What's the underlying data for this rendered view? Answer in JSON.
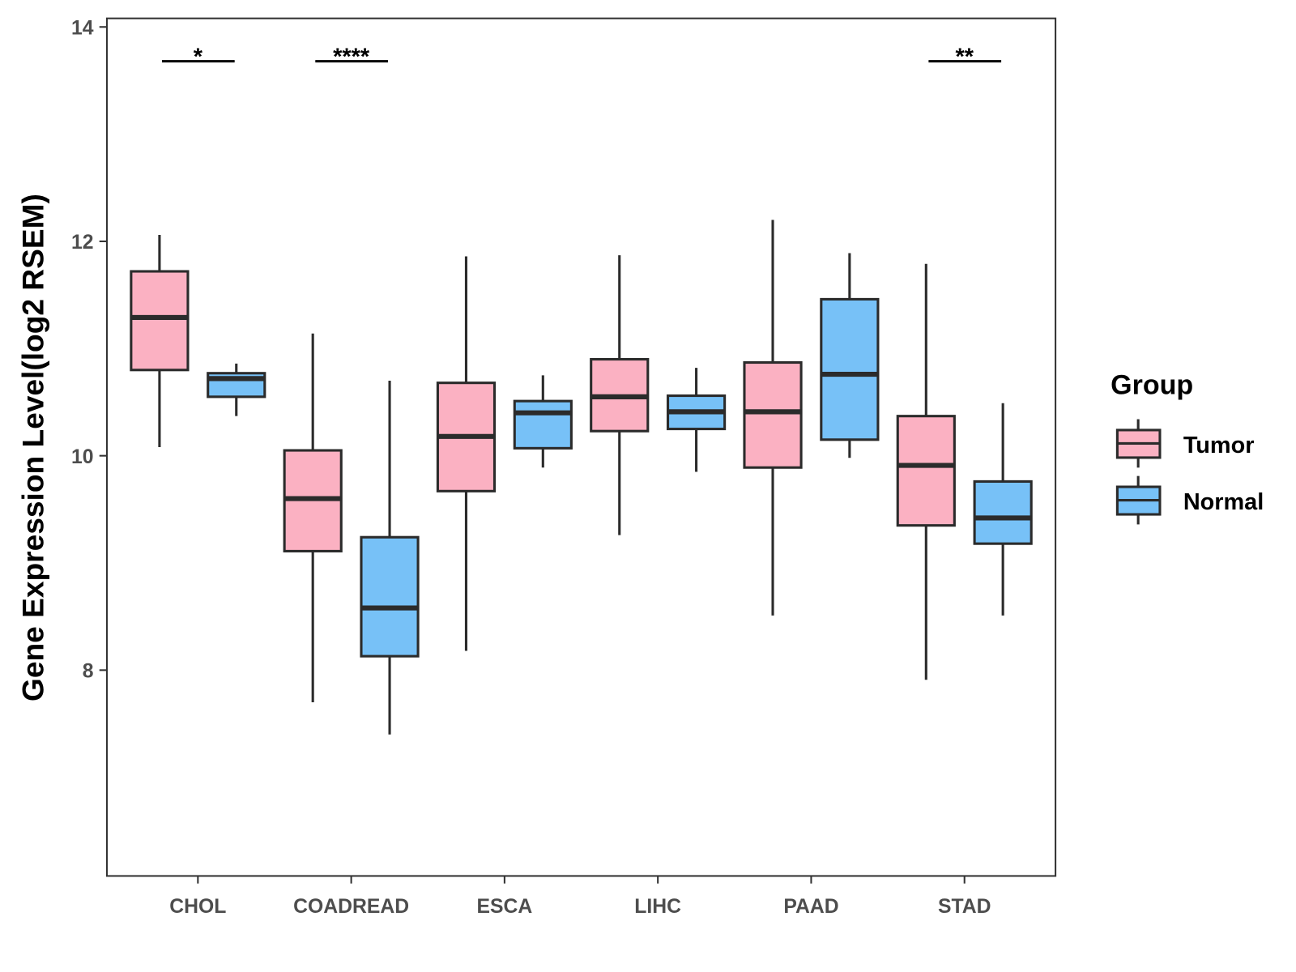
{
  "chart_data": {
    "type": "box",
    "title": "",
    "xlabel": "",
    "ylabel": "Gene Expression Level(log2 RSEM)",
    "ylim": [
      6.08,
      14.08
    ],
    "yticks": [
      "8",
      "10",
      "12",
      "14"
    ],
    "grid": false,
    "categories": [
      "CHOL",
      "COADREAD",
      "ESCA",
      "LIHC",
      "PAAD",
      "STAD"
    ],
    "legend": {
      "title": "Group",
      "placement": "right",
      "entries": [
        "Tumor",
        "Normal"
      ]
    },
    "colors": {
      "Tumor": "#fbb1c2",
      "Normal": "#77c1f7",
      "outline": "#2b2b2b"
    },
    "series": [
      {
        "name": "Tumor",
        "boxes": [
          {
            "min": 10.08,
            "q1": 10.8,
            "median": 11.29,
            "q3": 11.72,
            "max": 12.06
          },
          {
            "min": 7.7,
            "q1": 9.11,
            "median": 9.6,
            "q3": 10.05,
            "max": 11.14
          },
          {
            "min": 8.18,
            "q1": 9.67,
            "median": 10.18,
            "q3": 10.68,
            "max": 11.86
          },
          {
            "min": 9.26,
            "q1": 10.23,
            "median": 10.55,
            "q3": 10.9,
            "max": 11.87
          },
          {
            "min": 8.51,
            "q1": 9.89,
            "median": 10.41,
            "q3": 10.87,
            "max": 12.2
          },
          {
            "min": 7.91,
            "q1": 9.35,
            "median": 9.91,
            "q3": 10.37,
            "max": 11.79
          }
        ]
      },
      {
        "name": "Normal",
        "boxes": [
          {
            "min": 10.37,
            "q1": 10.55,
            "median": 10.72,
            "q3": 10.77,
            "max": 10.86
          },
          {
            "min": 7.4,
            "q1": 8.13,
            "median": 8.58,
            "q3": 9.24,
            "max": 10.7
          },
          {
            "min": 9.89,
            "q1": 10.07,
            "median": 10.4,
            "q3": 10.51,
            "max": 10.75
          },
          {
            "min": 9.85,
            "q1": 10.25,
            "median": 10.41,
            "q3": 10.56,
            "max": 10.82
          },
          {
            "min": 9.98,
            "q1": 10.15,
            "median": 10.76,
            "q3": 11.46,
            "max": 11.89
          },
          {
            "min": 8.51,
            "q1": 9.18,
            "median": 9.42,
            "q3": 9.76,
            "max": 10.49
          }
        ]
      }
    ],
    "annotations": [
      {
        "category": "CHOL",
        "label": "*",
        "y": 13.68
      },
      {
        "category": "COADREAD",
        "label": "****",
        "y": 13.68
      },
      {
        "category": "STAD",
        "label": "**",
        "y": 13.68
      }
    ]
  }
}
